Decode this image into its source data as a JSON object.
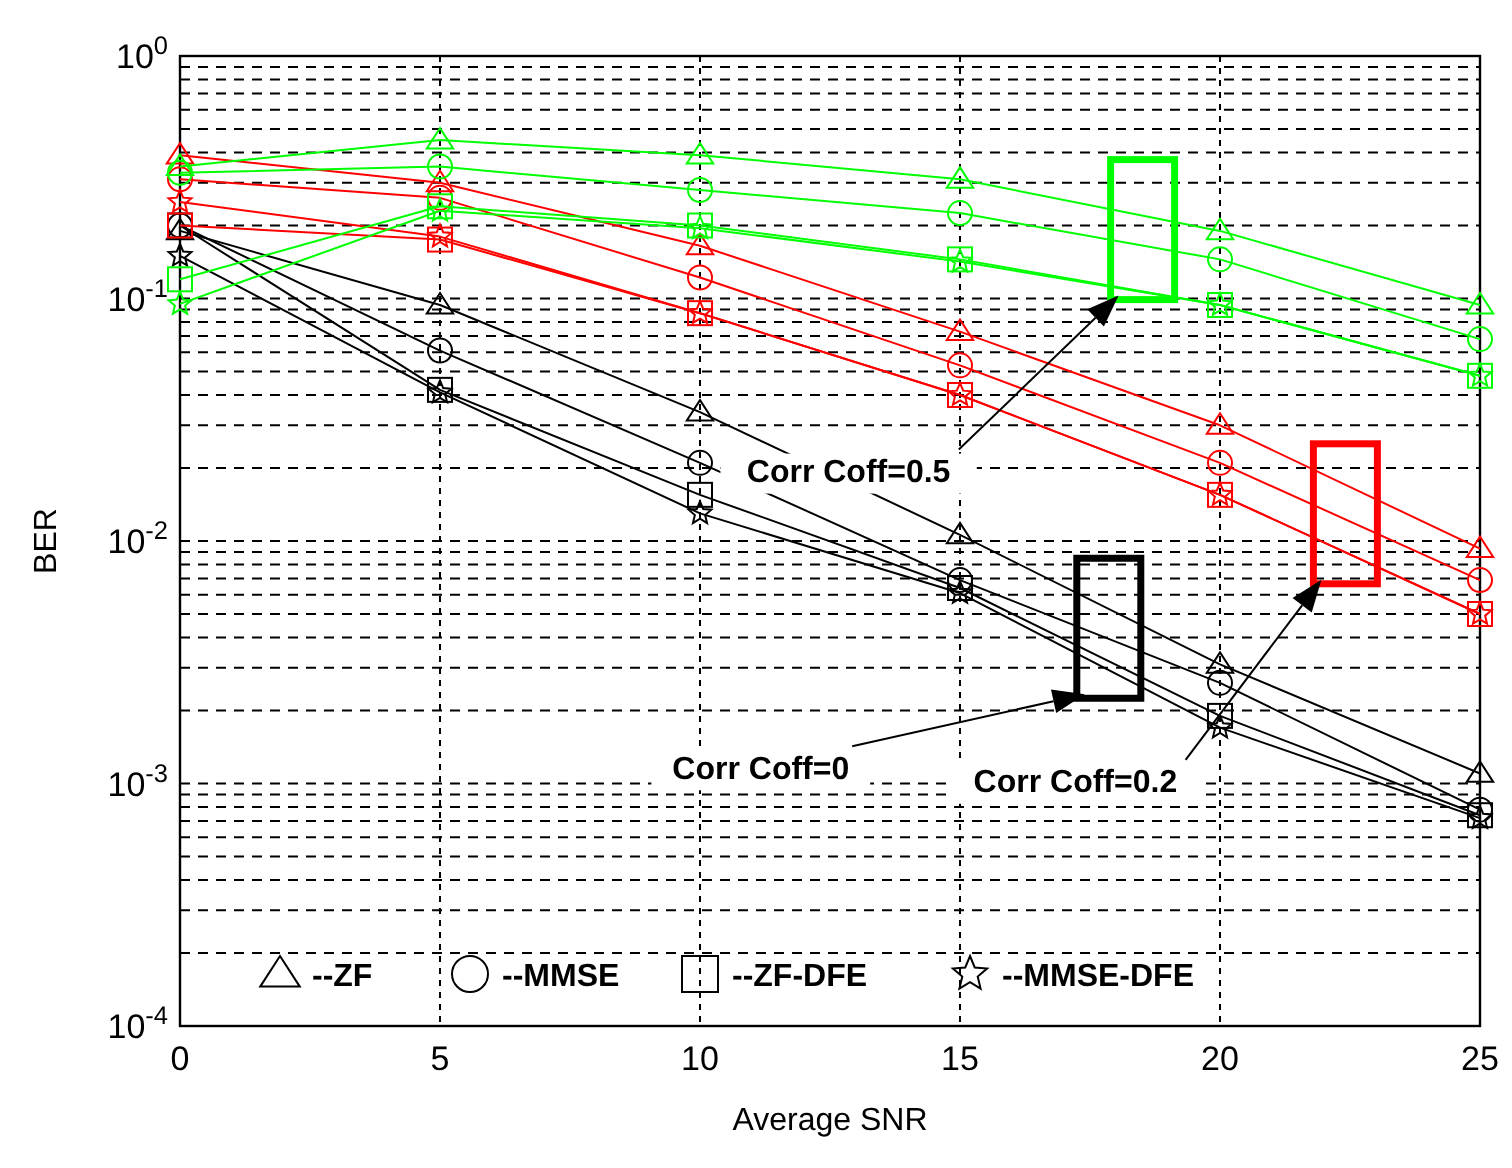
{
  "chart_data": {
    "type": "line",
    "xlabel": "Average SNR",
    "ylabel": "BER",
    "log": "y",
    "grid": true,
    "legend": "bottom",
    "x": [
      0,
      5,
      10,
      15,
      20,
      25
    ],
    "xlim": [
      0,
      25
    ],
    "xticks": [
      0,
      5,
      10,
      15,
      20,
      25
    ],
    "ylim": [
      0.0001,
      1
    ],
    "yticks": [
      {
        "value": 0.0001,
        "label": "10$^{-4}$"
      },
      {
        "value": 0.0002,
        "label": null
      },
      {
        "value": 0.0003,
        "label": null
      },
      {
        "value": 0.0004,
        "label": null
      },
      {
        "value": 0.0005,
        "label": null
      },
      {
        "value": 0.0006,
        "label": null
      },
      {
        "value": 0.0007,
        "label": null
      },
      {
        "value": 0.0008,
        "label": null
      },
      {
        "value": 0.0009,
        "label": null
      },
      {
        "value": 0.001,
        "label": "10$^{-3}$"
      },
      {
        "value": 0.002,
        "label": null
      },
      {
        "value": 0.003,
        "label": null
      },
      {
        "value": 0.004,
        "label": null
      },
      {
        "value": 0.005,
        "label": null
      },
      {
        "value": 0.006,
        "label": null
      },
      {
        "value": 0.007,
        "label": null
      },
      {
        "value": 0.008,
        "label": null
      },
      {
        "value": 0.009,
        "label": null
      },
      {
        "value": 0.01,
        "label": "10$^{-2}$"
      },
      {
        "value": 0.02,
        "label": null
      },
      {
        "value": 0.03,
        "label": null
      },
      {
        "value": 0.04,
        "label": null
      },
      {
        "value": 0.05,
        "label": null
      },
      {
        "value": 0.06,
        "label": null
      },
      {
        "value": 0.07,
        "label": null
      },
      {
        "value": 0.08,
        "label": null
      },
      {
        "value": 0.09,
        "label": null
      },
      {
        "value": 0.1,
        "label": "10$^{-1}$"
      },
      {
        "value": 0.2,
        "label": null
      },
      {
        "value": 0.3,
        "label": null
      },
      {
        "value": 0.4,
        "label": null
      },
      {
        "value": 0.5,
        "label": null
      },
      {
        "value": 0.6,
        "label": null
      },
      {
        "value": 0.7,
        "label": null
      },
      {
        "value": 0.8,
        "label": null
      },
      {
        "value": 0.9,
        "label": null
      },
      {
        "value": 1,
        "label": "10$^{0}$"
      }
    ],
    "series": [
      {
        "name": "--ZF",
        "color": "#000000",
        "marker": "triangle",
        "values": [
          0.19,
          0.094,
          0.034,
          0.0106,
          0.0031,
          0.0011
        ]
      },
      {
        "name": "--MMSE",
        "color": "#000000",
        "marker": "circle",
        "values": [
          0.2,
          0.061,
          0.021,
          0.0069,
          0.0026,
          0.00078
        ]
      },
      {
        "name": "--ZF-DFE",
        "color": "#000000",
        "marker": "square",
        "values": [
          0.2,
          0.042,
          0.0155,
          0.0064,
          0.0019,
          0.00074
        ]
      },
      {
        "name": "--MMSE-DFE",
        "color": "#000000",
        "marker": "star",
        "values": [
          0.15,
          0.041,
          0.013,
          0.0061,
          0.0017,
          0.00072
        ]
      },
      {
        "color": "#ff0000",
        "marker": "triangle",
        "values": [
          0.39,
          0.3,
          0.165,
          0.073,
          0.03,
          0.0093
        ]
      },
      {
        "color": "#ff0000",
        "marker": "circle",
        "values": [
          0.31,
          0.26,
          0.122,
          0.053,
          0.021,
          0.0069
        ]
      },
      {
        "color": "#ff0000",
        "marker": "square",
        "values": [
          0.2,
          0.175,
          0.087,
          0.04,
          0.0155,
          0.005
        ]
      },
      {
        "color": "#ff0000",
        "marker": "star",
        "values": [
          0.25,
          0.18,
          0.087,
          0.04,
          0.0155,
          0.005
        ]
      },
      {
        "color": "#00ff00",
        "marker": "triangle",
        "values": [
          0.35,
          0.45,
          0.39,
          0.31,
          0.19,
          0.094
        ]
      },
      {
        "color": "#00ff00",
        "marker": "circle",
        "values": [
          0.33,
          0.35,
          0.28,
          0.225,
          0.145,
          0.068
        ]
      },
      {
        "color": "#00ff00",
        "marker": "square",
        "values": [
          0.12,
          0.24,
          0.2,
          0.145,
          0.094,
          0.048
        ]
      },
      {
        "color": "#00ff00",
        "marker": "star",
        "values": [
          0.095,
          0.23,
          0.195,
          0.142,
          0.094,
          0.048
        ]
      }
    ],
    "annotations": [
      "Corr Coff=0.5",
      "Corr Coff=0",
      "Corr Coff=0.2"
    ]
  }
}
